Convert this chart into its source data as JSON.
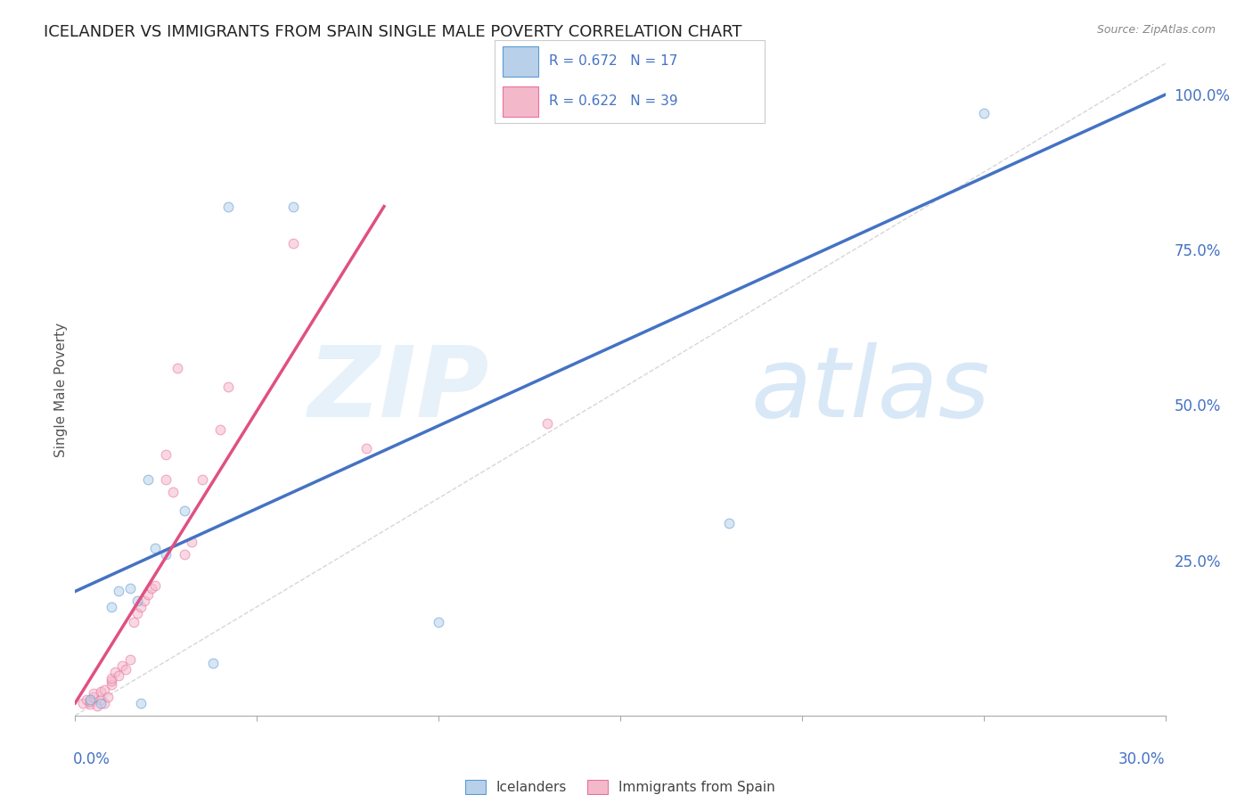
{
  "title": "ICELANDER VS IMMIGRANTS FROM SPAIN SINGLE MALE POVERTY CORRELATION CHART",
  "source": "Source: ZipAtlas.com",
  "ylabel": "Single Male Poverty",
  "xlim": [
    0.0,
    0.3
  ],
  "ylim": [
    0.0,
    1.05
  ],
  "x_ticks": [
    0.0,
    0.05,
    0.1,
    0.15,
    0.2,
    0.25,
    0.3
  ],
  "y_ticks_right": [
    0.25,
    0.5,
    0.75,
    1.0
  ],
  "y_tick_labels_right": [
    "25.0%",
    "50.0%",
    "75.0%",
    "100.0%"
  ],
  "blue_fill": "#b8d0ea",
  "blue_edge": "#5b9bd5",
  "pink_fill": "#f4b8cb",
  "pink_edge": "#e8729a",
  "blue_line_color": "#4472c4",
  "pink_line_color": "#e05080",
  "legend_label1": "Icelanders",
  "legend_label2": "Immigrants from Spain",
  "watermark_zip": "ZIP",
  "watermark_atlas": "atlas",
  "blue_scatter_x": [
    0.004,
    0.007,
    0.01,
    0.012,
    0.015,
    0.017,
    0.018,
    0.02,
    0.022,
    0.025,
    0.03,
    0.038,
    0.042,
    0.06,
    0.1,
    0.18,
    0.25
  ],
  "blue_scatter_y": [
    0.025,
    0.02,
    0.175,
    0.2,
    0.205,
    0.185,
    0.02,
    0.38,
    0.27,
    0.26,
    0.33,
    0.085,
    0.82,
    0.82,
    0.15,
    0.31,
    0.97
  ],
  "pink_scatter_x": [
    0.002,
    0.003,
    0.004,
    0.004,
    0.005,
    0.005,
    0.006,
    0.007,
    0.007,
    0.008,
    0.008,
    0.009,
    0.01,
    0.01,
    0.01,
    0.011,
    0.012,
    0.013,
    0.014,
    0.015,
    0.016,
    0.017,
    0.018,
    0.019,
    0.02,
    0.021,
    0.022,
    0.025,
    0.025,
    0.027,
    0.028,
    0.03,
    0.032,
    0.035,
    0.04,
    0.042,
    0.06,
    0.08,
    0.13
  ],
  "pink_scatter_y": [
    0.02,
    0.025,
    0.018,
    0.022,
    0.03,
    0.035,
    0.015,
    0.025,
    0.038,
    0.02,
    0.042,
    0.03,
    0.05,
    0.055,
    0.06,
    0.07,
    0.065,
    0.08,
    0.075,
    0.09,
    0.15,
    0.165,
    0.175,
    0.185,
    0.195,
    0.205,
    0.21,
    0.38,
    0.42,
    0.36,
    0.56,
    0.26,
    0.28,
    0.38,
    0.46,
    0.53,
    0.76,
    0.43,
    0.47
  ],
  "pink_line_x0": 0.0,
  "pink_line_y0": 0.02,
  "pink_line_x1": 0.085,
  "pink_line_y1": 0.82,
  "blue_line_x0": 0.0,
  "blue_line_y0": 0.2,
  "blue_line_x1": 0.3,
  "blue_line_y1": 1.0,
  "background_color": "#ffffff",
  "grid_color": "#d8d8d8",
  "marker_size": 60,
  "marker_alpha": 0.55,
  "title_color": "#222222",
  "axis_color": "#4472c4",
  "title_fontsize": 13,
  "source_fontsize": 9
}
